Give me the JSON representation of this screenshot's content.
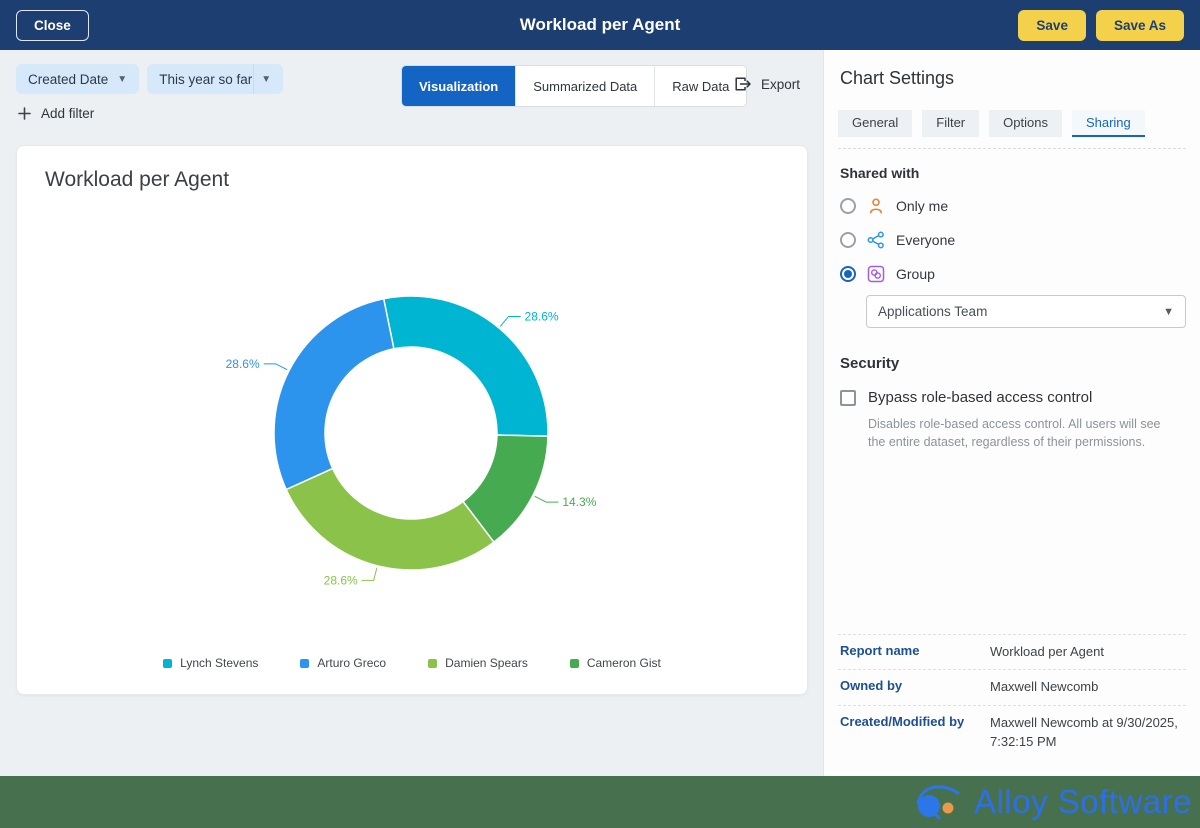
{
  "header": {
    "close_label": "Close",
    "title": "Workload per Agent",
    "save_label": "Save",
    "save_as_label": "Save As"
  },
  "toolbar": {
    "filters": [
      {
        "label": "Created Date"
      },
      {
        "label": "This year so far"
      }
    ],
    "add_filter_label": "Add filter",
    "view_tabs": [
      {
        "label": "Visualization",
        "active": true
      },
      {
        "label": "Summarized Data",
        "active": false
      },
      {
        "label": "Raw Data",
        "active": false
      }
    ],
    "export_label": "Export"
  },
  "chart_card": {
    "title": "Workload per Agent"
  },
  "chart_data": {
    "type": "pie",
    "title": "Workload per Agent",
    "donut": true,
    "start_angle_deg": -11.5,
    "inner_radius_ratio": 0.63,
    "legend_position": "bottom",
    "slices": [
      {
        "name": "Lynch Stevens",
        "percent": 28.6,
        "percent_label": "28.6%",
        "color": "#00b5d2"
      },
      {
        "name": "Cameron Gist",
        "percent": 14.3,
        "percent_label": "14.3%",
        "color": "#46ab50"
      },
      {
        "name": "Damien Spears",
        "percent": 28.6,
        "percent_label": "28.6%",
        "color": "#8bc34a"
      },
      {
        "name": "Arturo Greco",
        "percent": 28.6,
        "percent_label": "28.6%",
        "color": "#2d94ee"
      }
    ],
    "legend": [
      {
        "name": "Lynch Stevens",
        "color": "#00b5d2"
      },
      {
        "name": "Arturo Greco",
        "color": "#2d94ee"
      },
      {
        "name": "Damien Spears",
        "color": "#8bc34a"
      },
      {
        "name": "Cameron Gist",
        "color": "#46ab50"
      }
    ]
  },
  "settings": {
    "title": "Chart Settings",
    "tabs": [
      {
        "label": "General",
        "active": false
      },
      {
        "label": "Filter",
        "active": false
      },
      {
        "label": "Options",
        "active": false
      },
      {
        "label": "Sharing",
        "active": true
      }
    ],
    "shared_with": {
      "label": "Shared with",
      "options": [
        {
          "label": "Only me",
          "selected": false,
          "icon": "person-icon"
        },
        {
          "label": "Everyone",
          "selected": false,
          "icon": "share-network-icon"
        },
        {
          "label": "Group",
          "selected": true,
          "icon": "group-icon"
        }
      ],
      "group_select_value": "Applications Team"
    },
    "security": {
      "label": "Security",
      "checkbox_label": "Bypass role-based access control",
      "checkbox_checked": false,
      "description": "Disables role-based access control. All users will see the entire dataset, regardless of their permissions."
    },
    "info": [
      {
        "label": "Report name",
        "value": "Workload per Agent"
      },
      {
        "label": "Owned by",
        "value": "Maxwell Newcomb"
      },
      {
        "label": "Created/Modified by",
        "value": "Maxwell Newcomb at 9/30/2025, 7:32:15 PM"
      }
    ]
  },
  "footer": {
    "brand": "Alloy Software"
  },
  "colors": {
    "topbar": "#1d3e71",
    "accent": "#1565c0",
    "save_button": "#f3d14b",
    "filter_chip": "#d5e9fb",
    "footer": "#47704f",
    "info_label": "#1d4f91"
  }
}
